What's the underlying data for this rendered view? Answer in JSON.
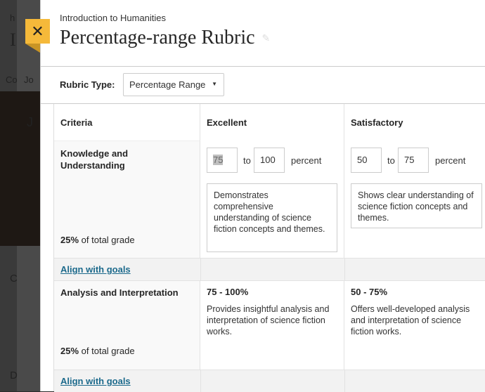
{
  "background": {
    "fragments": [
      "h",
      "I",
      "Co",
      "Jo",
      "J",
      "C",
      "D"
    ]
  },
  "close_icon": "close-icon",
  "header": {
    "course": "Introduction to Humanities",
    "title": "Percentage-range Rubric",
    "edit_icon": "pencil-icon"
  },
  "rubric_type": {
    "label": "Rubric Type:",
    "value": "Percentage Range"
  },
  "columns": [
    "Criteria",
    "Excellent",
    "Satisfactory"
  ],
  "rows": [
    {
      "name": "Knowledge and Understanding",
      "weight": "25%",
      "weight_suffix": "of total grade",
      "align": "Align with goals",
      "levels": [
        {
          "from": "75",
          "to": "100",
          "sep": "to",
          "unit": "percent",
          "desc": "Demonstrates comprehensive understanding of science fiction concepts and themes."
        },
        {
          "from": "50",
          "to": "75",
          "sep": "to",
          "unit": "percent",
          "desc": "Shows clear understanding of science fiction concepts and themes."
        }
      ]
    },
    {
      "name": "Analysis and Interpretation",
      "weight": "25%",
      "weight_suffix": "of total grade",
      "align": "Align with goals",
      "levels": [
        {
          "range": "75 - 100%",
          "desc": "Provides insightful analysis and interpretation of science fiction works."
        },
        {
          "range": "50 - 75%",
          "desc": "Offers well-developed analysis and interpretation of science fiction works."
        }
      ]
    }
  ]
}
